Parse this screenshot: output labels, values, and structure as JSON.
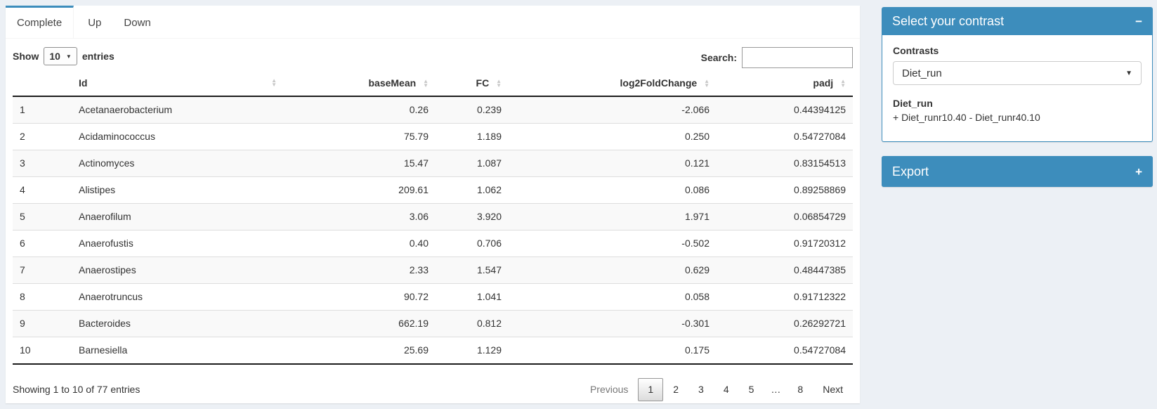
{
  "app": {
    "accent_color": "#3d8dbc",
    "page_bg": "#ecf0f5"
  },
  "tabs": {
    "complete": "Complete",
    "up": "Up",
    "down": "Down"
  },
  "controls": {
    "show": "Show",
    "page_length": "10",
    "entries": "entries",
    "search_label": "Search:",
    "search_value": ""
  },
  "table": {
    "headers": {
      "id": "Id",
      "base_mean": "baseMean",
      "fc": "FC",
      "log2fc": "log2FoldChange",
      "padj": "padj"
    },
    "rows": [
      {
        "index": "1",
        "id": "Acetanaerobacterium",
        "baseMean": "0.26",
        "fc": "0.239",
        "log2fc": "-2.066",
        "padj": "0.44394125"
      },
      {
        "index": "2",
        "id": "Acidaminococcus",
        "baseMean": "75.79",
        "fc": "1.189",
        "log2fc": "0.250",
        "padj": "0.54727084"
      },
      {
        "index": "3",
        "id": "Actinomyces",
        "baseMean": "15.47",
        "fc": "1.087",
        "log2fc": "0.121",
        "padj": "0.83154513"
      },
      {
        "index": "4",
        "id": "Alistipes",
        "baseMean": "209.61",
        "fc": "1.062",
        "log2fc": "0.086",
        "padj": "0.89258869"
      },
      {
        "index": "5",
        "id": "Anaerofilum",
        "baseMean": "3.06",
        "fc": "3.920",
        "log2fc": "1.971",
        "padj": "0.06854729"
      },
      {
        "index": "6",
        "id": "Anaerofustis",
        "baseMean": "0.40",
        "fc": "0.706",
        "log2fc": "-0.502",
        "padj": "0.91720312"
      },
      {
        "index": "7",
        "id": "Anaerostipes",
        "baseMean": "2.33",
        "fc": "1.547",
        "log2fc": "0.629",
        "padj": "0.48447385"
      },
      {
        "index": "8",
        "id": "Anaerotruncus",
        "baseMean": "90.72",
        "fc": "1.041",
        "log2fc": "0.058",
        "padj": "0.91712322"
      },
      {
        "index": "9",
        "id": "Bacteroides",
        "baseMean": "662.19",
        "fc": "0.812",
        "log2fc": "-0.301",
        "padj": "0.26292721"
      },
      {
        "index": "10",
        "id": "Barnesiella",
        "baseMean": "25.69",
        "fc": "1.129",
        "log2fc": "0.175",
        "padj": "0.54727084"
      }
    ]
  },
  "footer": {
    "info": "Showing 1 to 10 of 77 entries",
    "previous": "Previous",
    "pages": [
      "1",
      "2",
      "3",
      "4",
      "5",
      "…",
      "8"
    ],
    "active_page": "1",
    "next": "Next"
  },
  "sidebar": {
    "contrast_panel": {
      "title": "Select your contrast",
      "collapse_icon": "−",
      "contrasts_label": "Contrasts",
      "selected": "Diet_run",
      "detail_name": "Diet_run",
      "detail_formula": "+ Diet_runr10.40 - Diet_runr40.10"
    },
    "export_panel": {
      "title": "Export",
      "expand_icon": "+"
    }
  }
}
